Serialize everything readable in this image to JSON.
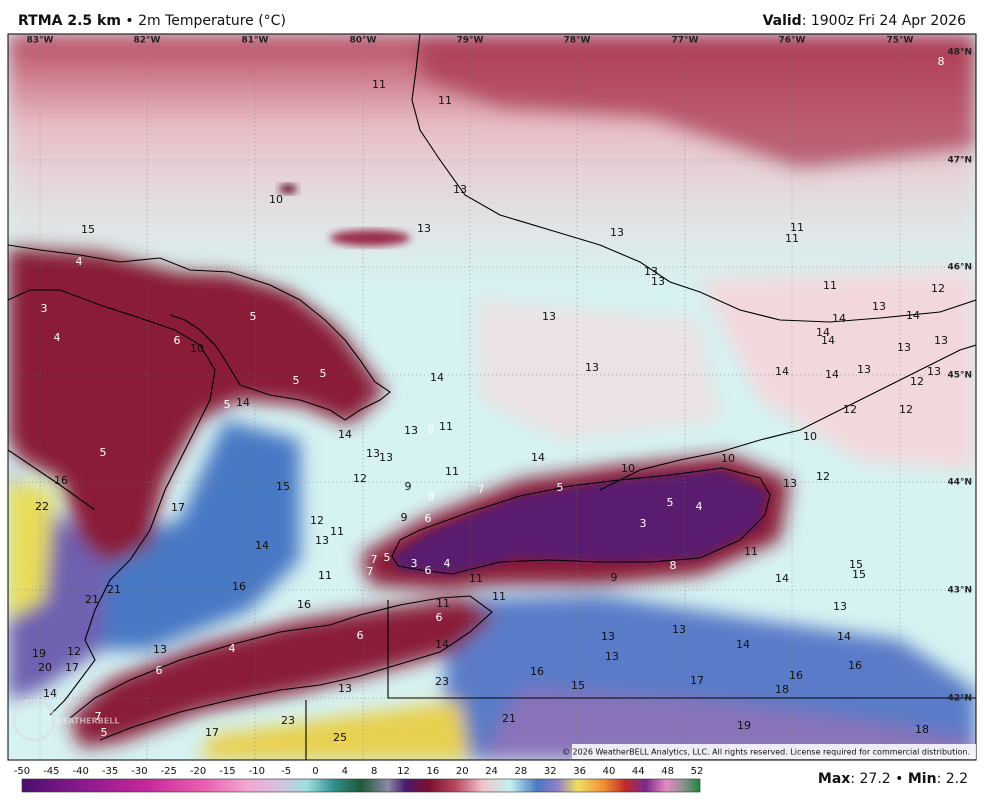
{
  "header": {
    "product": "RTMA 2.5 km",
    "separator": "•",
    "field": "2m Temperature (°C)",
    "valid_label": "Valid",
    "valid_time": ": 1900z Fri 24 Apr 2026"
  },
  "longitudes": [
    "83°W",
    "82°W",
    "81°W",
    "80°W",
    "79°W",
    "78°W",
    "77°W",
    "76°W",
    "75°W"
  ],
  "latitudes": [
    "48°N",
    "47°N",
    "46°N",
    "45°N",
    "44°N",
    "43°N",
    "42°N"
  ],
  "stations": {
    "values": [
      11,
      11,
      8,
      13,
      10,
      15,
      13,
      13,
      11,
      11,
      4,
      13,
      13,
      11,
      12,
      3,
      5,
      13,
      13,
      14,
      14,
      4,
      6,
      10,
      14,
      14,
      13,
      13,
      5,
      5,
      14,
      13,
      14,
      14,
      13,
      13,
      12,
      5,
      14,
      12,
      12,
      14,
      13,
      8,
      11,
      13,
      13,
      10,
      5,
      14,
      11,
      10,
      10,
      12,
      16,
      9,
      15,
      8,
      7,
      5,
      5,
      4,
      13,
      12,
      22,
      17,
      9,
      6,
      12,
      11,
      13,
      3,
      14,
      11,
      7,
      5,
      7,
      3,
      6,
      4,
      8,
      11,
      9,
      11,
      14,
      15,
      15,
      16,
      21,
      21,
      11,
      16,
      11,
      13,
      6,
      6,
      12,
      13,
      4,
      14,
      13,
      13,
      14,
      14,
      19,
      20,
      17,
      6,
      13,
      16,
      16,
      23,
      13,
      17,
      15,
      16,
      18,
      14,
      7,
      23,
      21,
      19,
      18,
      5,
      17,
      25
    ]
  },
  "copyright": "© 2026 WeatherBELL Analytics, LLC. All rights reserved. License required for commercial distribution.",
  "colorbar": {
    "ticks": [
      "-50",
      "-45",
      "-40",
      "-35",
      "-30",
      "-25",
      "-20",
      "-15",
      "-10",
      "-5",
      "0",
      "4",
      "8",
      "12",
      "16",
      "20",
      "24",
      "28",
      "32",
      "36",
      "40",
      "44",
      "48",
      "52"
    ]
  },
  "footer": {
    "max_label": "Max",
    "max_value": ": 27.2",
    "separator": "•",
    "min_label": "Min",
    "min_value": ": 2.2"
  }
}
